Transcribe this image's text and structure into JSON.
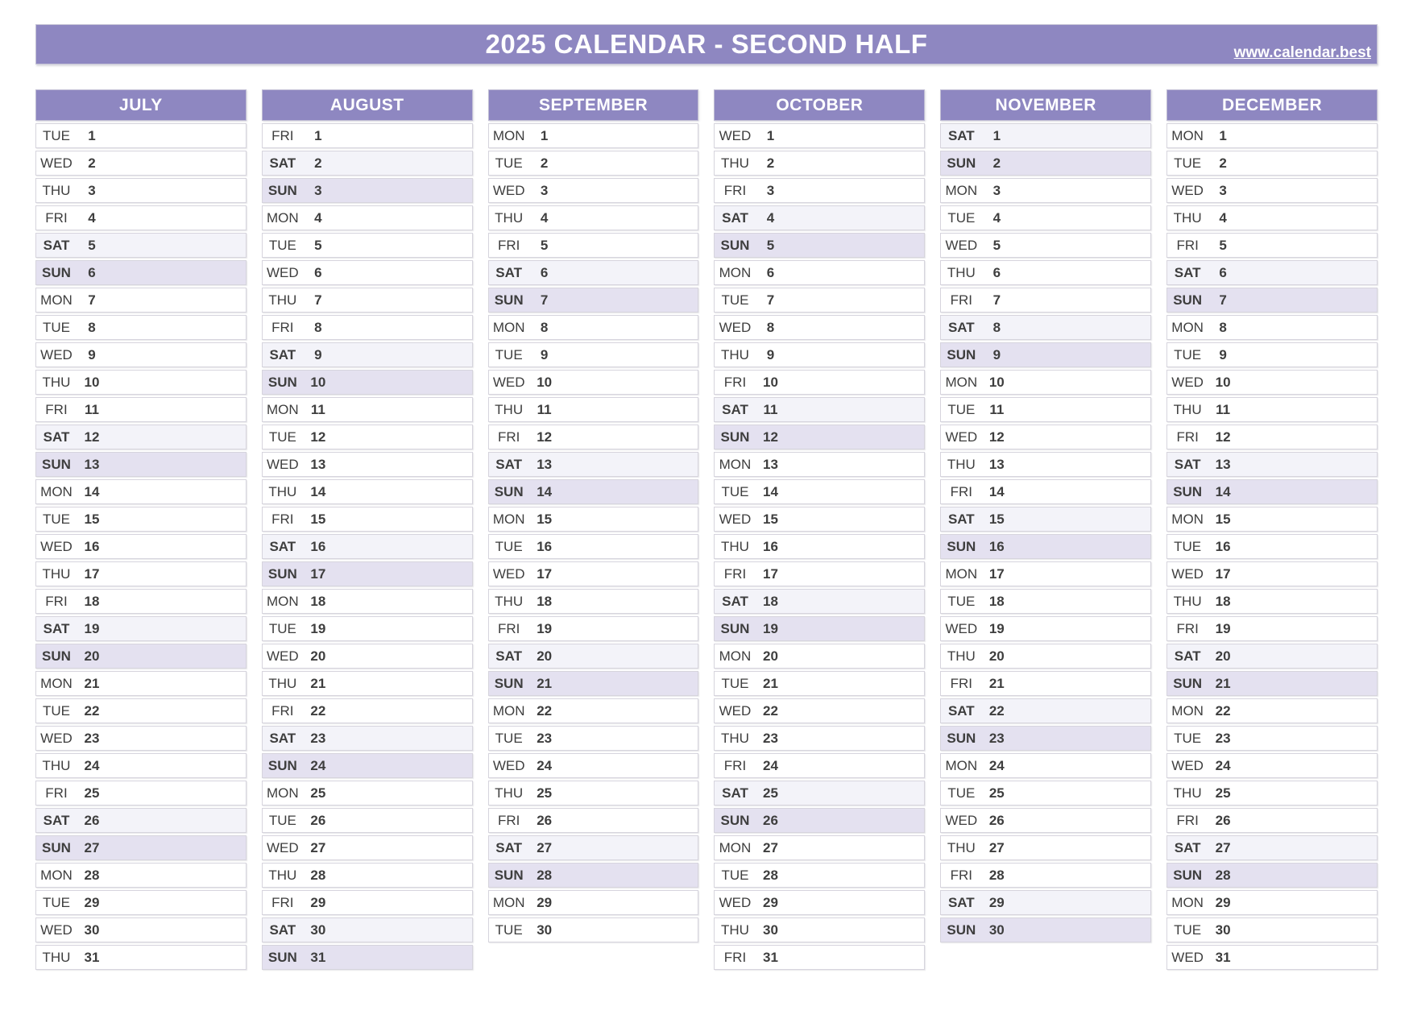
{
  "header": {
    "title": "2025 CALENDAR - SECOND HALF",
    "site_link": "www.calendar.best"
  },
  "colors": {
    "accent": "#8e87c1",
    "saturday_bg": "#f3f3f9",
    "sunday_bg": "#e4e1f0",
    "header_text": "#ffffff",
    "day_text": "#3e3e3e"
  },
  "months": [
    {
      "name": "JULY",
      "days": [
        [
          "TUE",
          1
        ],
        [
          "WED",
          2
        ],
        [
          "THU",
          3
        ],
        [
          "FRI",
          4
        ],
        [
          "SAT",
          5
        ],
        [
          "SUN",
          6
        ],
        [
          "MON",
          7
        ],
        [
          "TUE",
          8
        ],
        [
          "WED",
          9
        ],
        [
          "THU",
          10
        ],
        [
          "FRI",
          11
        ],
        [
          "SAT",
          12
        ],
        [
          "SUN",
          13
        ],
        [
          "MON",
          14
        ],
        [
          "TUE",
          15
        ],
        [
          "WED",
          16
        ],
        [
          "THU",
          17
        ],
        [
          "FRI",
          18
        ],
        [
          "SAT",
          19
        ],
        [
          "SUN",
          20
        ],
        [
          "MON",
          21
        ],
        [
          "TUE",
          22
        ],
        [
          "WED",
          23
        ],
        [
          "THU",
          24
        ],
        [
          "FRI",
          25
        ],
        [
          "SAT",
          26
        ],
        [
          "SUN",
          27
        ],
        [
          "MON",
          28
        ],
        [
          "TUE",
          29
        ],
        [
          "WED",
          30
        ],
        [
          "THU",
          31
        ]
      ]
    },
    {
      "name": "AUGUST",
      "days": [
        [
          "FRI",
          1
        ],
        [
          "SAT",
          2
        ],
        [
          "SUN",
          3
        ],
        [
          "MON",
          4
        ],
        [
          "TUE",
          5
        ],
        [
          "WED",
          6
        ],
        [
          "THU",
          7
        ],
        [
          "FRI",
          8
        ],
        [
          "SAT",
          9
        ],
        [
          "SUN",
          10
        ],
        [
          "MON",
          11
        ],
        [
          "TUE",
          12
        ],
        [
          "WED",
          13
        ],
        [
          "THU",
          14
        ],
        [
          "FRI",
          15
        ],
        [
          "SAT",
          16
        ],
        [
          "SUN",
          17
        ],
        [
          "MON",
          18
        ],
        [
          "TUE",
          19
        ],
        [
          "WED",
          20
        ],
        [
          "THU",
          21
        ],
        [
          "FRI",
          22
        ],
        [
          "SAT",
          23
        ],
        [
          "SUN",
          24
        ],
        [
          "MON",
          25
        ],
        [
          "TUE",
          26
        ],
        [
          "WED",
          27
        ],
        [
          "THU",
          28
        ],
        [
          "FRI",
          29
        ],
        [
          "SAT",
          30
        ],
        [
          "SUN",
          31
        ]
      ]
    },
    {
      "name": "SEPTEMBER",
      "days": [
        [
          "MON",
          1
        ],
        [
          "TUE",
          2
        ],
        [
          "WED",
          3
        ],
        [
          "THU",
          4
        ],
        [
          "FRI",
          5
        ],
        [
          "SAT",
          6
        ],
        [
          "SUN",
          7
        ],
        [
          "MON",
          8
        ],
        [
          "TUE",
          9
        ],
        [
          "WED",
          10
        ],
        [
          "THU",
          11
        ],
        [
          "FRI",
          12
        ],
        [
          "SAT",
          13
        ],
        [
          "SUN",
          14
        ],
        [
          "MON",
          15
        ],
        [
          "TUE",
          16
        ],
        [
          "WED",
          17
        ],
        [
          "THU",
          18
        ],
        [
          "FRI",
          19
        ],
        [
          "SAT",
          20
        ],
        [
          "SUN",
          21
        ],
        [
          "MON",
          22
        ],
        [
          "TUE",
          23
        ],
        [
          "WED",
          24
        ],
        [
          "THU",
          25
        ],
        [
          "FRI",
          26
        ],
        [
          "SAT",
          27
        ],
        [
          "SUN",
          28
        ],
        [
          "MON",
          29
        ],
        [
          "TUE",
          30
        ]
      ]
    },
    {
      "name": "OCTOBER",
      "days": [
        [
          "WED",
          1
        ],
        [
          "THU",
          2
        ],
        [
          "FRI",
          3
        ],
        [
          "SAT",
          4
        ],
        [
          "SUN",
          5
        ],
        [
          "MON",
          6
        ],
        [
          "TUE",
          7
        ],
        [
          "WED",
          8
        ],
        [
          "THU",
          9
        ],
        [
          "FRI",
          10
        ],
        [
          "SAT",
          11
        ],
        [
          "SUN",
          12
        ],
        [
          "MON",
          13
        ],
        [
          "TUE",
          14
        ],
        [
          "WED",
          15
        ],
        [
          "THU",
          16
        ],
        [
          "FRI",
          17
        ],
        [
          "SAT",
          18
        ],
        [
          "SUN",
          19
        ],
        [
          "MON",
          20
        ],
        [
          "TUE",
          21
        ],
        [
          "WED",
          22
        ],
        [
          "THU",
          23
        ],
        [
          "FRI",
          24
        ],
        [
          "SAT",
          25
        ],
        [
          "SUN",
          26
        ],
        [
          "MON",
          27
        ],
        [
          "TUE",
          28
        ],
        [
          "WED",
          29
        ],
        [
          "THU",
          30
        ],
        [
          "FRI",
          31
        ]
      ]
    },
    {
      "name": "NOVEMBER",
      "days": [
        [
          "SAT",
          1
        ],
        [
          "SUN",
          2
        ],
        [
          "MON",
          3
        ],
        [
          "TUE",
          4
        ],
        [
          "WED",
          5
        ],
        [
          "THU",
          6
        ],
        [
          "FRI",
          7
        ],
        [
          "SAT",
          8
        ],
        [
          "SUN",
          9
        ],
        [
          "MON",
          10
        ],
        [
          "TUE",
          11
        ],
        [
          "WED",
          12
        ],
        [
          "THU",
          13
        ],
        [
          "FRI",
          14
        ],
        [
          "SAT",
          15
        ],
        [
          "SUN",
          16
        ],
        [
          "MON",
          17
        ],
        [
          "TUE",
          18
        ],
        [
          "WED",
          19
        ],
        [
          "THU",
          20
        ],
        [
          "FRI",
          21
        ],
        [
          "SAT",
          22
        ],
        [
          "SUN",
          23
        ],
        [
          "MON",
          24
        ],
        [
          "TUE",
          25
        ],
        [
          "WED",
          26
        ],
        [
          "THU",
          27
        ],
        [
          "FRI",
          28
        ],
        [
          "SAT",
          29
        ],
        [
          "SUN",
          30
        ]
      ]
    },
    {
      "name": "DECEMBER",
      "days": [
        [
          "MON",
          1
        ],
        [
          "TUE",
          2
        ],
        [
          "WED",
          3
        ],
        [
          "THU",
          4
        ],
        [
          "FRI",
          5
        ],
        [
          "SAT",
          6
        ],
        [
          "SUN",
          7
        ],
        [
          "MON",
          8
        ],
        [
          "TUE",
          9
        ],
        [
          "WED",
          10
        ],
        [
          "THU",
          11
        ],
        [
          "FRI",
          12
        ],
        [
          "SAT",
          13
        ],
        [
          "SUN",
          14
        ],
        [
          "MON",
          15
        ],
        [
          "TUE",
          16
        ],
        [
          "WED",
          17
        ],
        [
          "THU",
          18
        ],
        [
          "FRI",
          19
        ],
        [
          "SAT",
          20
        ],
        [
          "SUN",
          21
        ],
        [
          "MON",
          22
        ],
        [
          "TUE",
          23
        ],
        [
          "WED",
          24
        ],
        [
          "THU",
          25
        ],
        [
          "FRI",
          26
        ],
        [
          "SAT",
          27
        ],
        [
          "SUN",
          28
        ],
        [
          "MON",
          29
        ],
        [
          "TUE",
          30
        ],
        [
          "WED",
          31
        ]
      ]
    }
  ]
}
